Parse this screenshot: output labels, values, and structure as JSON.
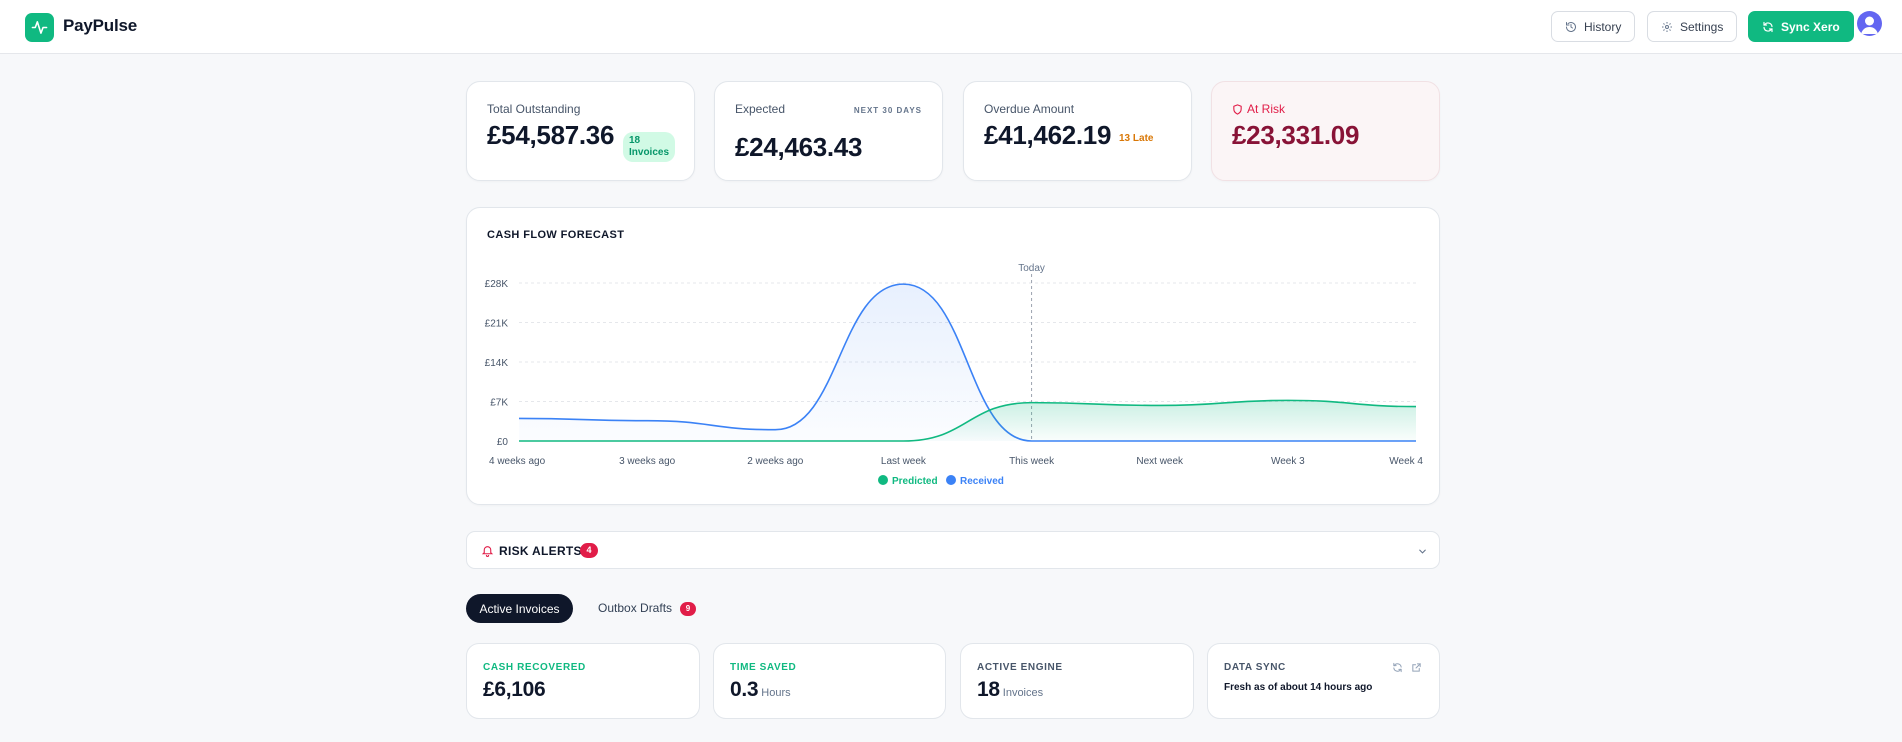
{
  "app": {
    "name": "PayPulse"
  },
  "header": {
    "history_label": "History",
    "settings_label": "Settings",
    "sync_label": "Sync Xero"
  },
  "stats": {
    "total_outstanding": {
      "label": "Total Outstanding",
      "value": "£54,587.36",
      "badge_line1": "18",
      "badge_line2": "Invoices"
    },
    "expected": {
      "label": "Expected",
      "value": "£24,463.43",
      "period": "NEXT 30 DAYS"
    },
    "overdue": {
      "label": "Overdue Amount",
      "value": "£41,462.19",
      "late_tag": "13 Late"
    },
    "at_risk": {
      "label": "At Risk",
      "value": "£23,331.09"
    }
  },
  "chart_data": {
    "type": "area",
    "title": "CASH FLOW FORECAST",
    "x": [
      "4 weeks ago",
      "3 weeks ago",
      "2 weeks ago",
      "Last week",
      "This week",
      "Next week",
      "Week 3",
      "Week 4"
    ],
    "y_ticks": [
      "£0",
      "£7K",
      "£14K",
      "£21K",
      "£28K"
    ],
    "ylim": [
      0,
      28000
    ],
    "today_label": "Today",
    "today_index": 4,
    "series": [
      {
        "name": "Predicted",
        "color": "#10b981",
        "values": [
          0,
          0,
          0,
          0,
          6800,
          6300,
          7200,
          6100
        ]
      },
      {
        "name": "Received",
        "color": "#3b82f6",
        "values": [
          4000,
          3600,
          2000,
          27800,
          0,
          0,
          0,
          0
        ]
      }
    ],
    "legend_placement": "bottom-center",
    "grid": true
  },
  "alerts": {
    "title": "RISK ALERTS",
    "count": "4"
  },
  "tabs": {
    "active_label": "Active Invoices",
    "outbox_label": "Outbox Drafts",
    "outbox_count": "9"
  },
  "metrics": {
    "cash_recovered": {
      "label": "CASH RECOVERED",
      "value": "£6,106",
      "color": "#10b981"
    },
    "time_saved": {
      "label": "TIME SAVED",
      "value": "0.3",
      "unit": "Hours",
      "color": "#10b981"
    },
    "active_engine": {
      "label": "ACTIVE ENGINE",
      "value": "18",
      "unit": "Invoices",
      "color": "#475569"
    },
    "data_sync": {
      "label": "DATA SYNC",
      "status": "Fresh as of about 14 hours ago",
      "color": "#475569"
    }
  }
}
